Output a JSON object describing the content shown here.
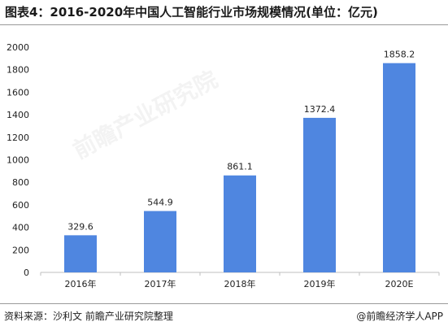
{
  "title": "图表4：2016-2020年中国人工智能行业市场规模情况(单位：亿元)",
  "source": "资料来源：沙利文 前瞻产业研究院整理",
  "credit": "@前瞻经济学人APP",
  "watermark": "前瞻产业研究院",
  "colors": {
    "bar": "#4f86e0",
    "axis": "#bfbfbf",
    "text": "#222222"
  },
  "chart_data": {
    "type": "bar",
    "title": "图表4：2016-2020年中国人工智能行业市场规模情况(单位：亿元)",
    "xlabel": "",
    "ylabel": "",
    "categories": [
      "2016年",
      "2017年",
      "2018年",
      "2019年",
      "2020E"
    ],
    "values": [
      329.6,
      544.9,
      861.1,
      1372.4,
      1858.2
    ],
    "value_labels": [
      "329.6",
      "544.9",
      "861.1",
      "1372.4",
      "1858.2"
    ],
    "ylim": [
      0,
      2000
    ],
    "yticks": [
      0,
      200,
      400,
      600,
      800,
      1000,
      1200,
      1400,
      1600,
      1800,
      2000
    ],
    "grid": false,
    "legend": "none"
  }
}
